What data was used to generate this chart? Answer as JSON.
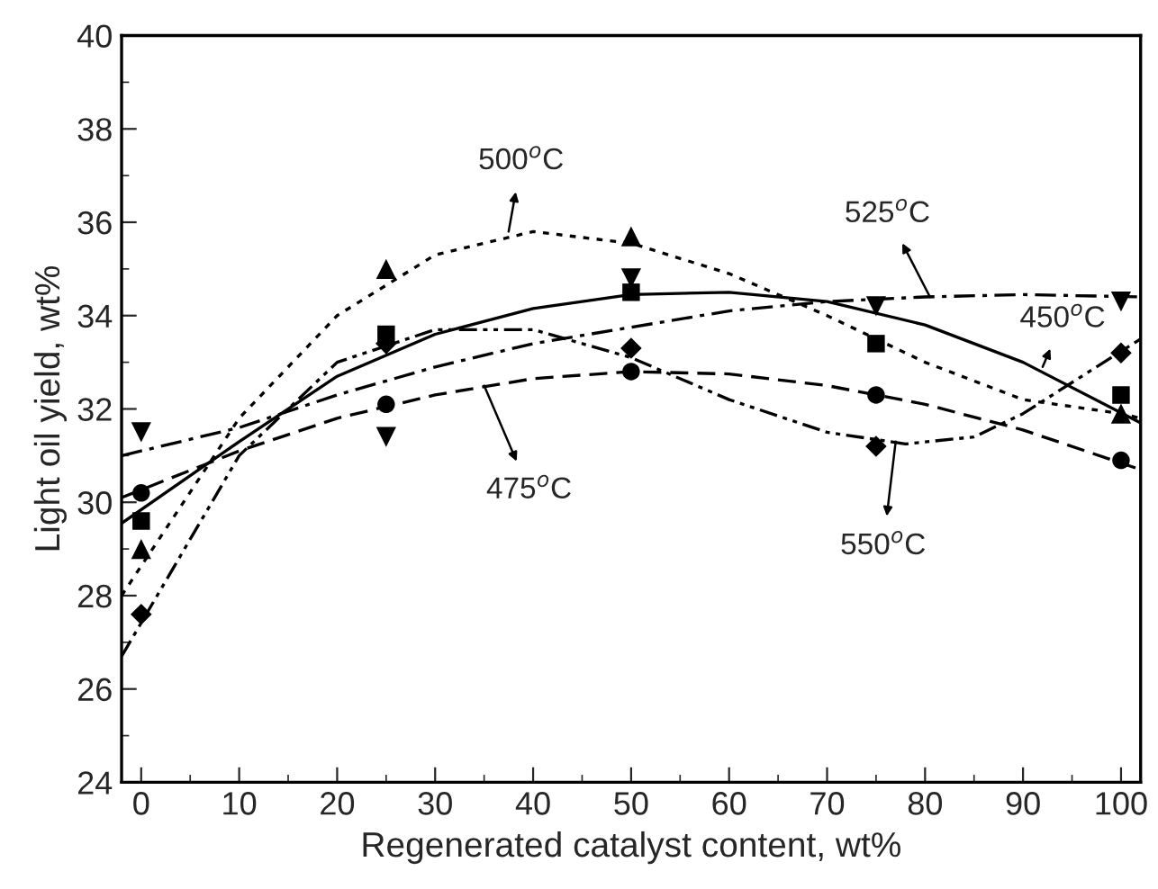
{
  "chart_data": {
    "type": "scatter",
    "xlabel": "Regenerated catalyst content, wt%",
    "ylabel": "Light oil yield, wt%",
    "xlim": [
      -2,
      102
    ],
    "xticks": [
      0,
      10,
      20,
      30,
      40,
      50,
      60,
      70,
      80,
      90,
      100
    ],
    "ylim": [
      24,
      40
    ],
    "yticks": [
      24,
      26,
      28,
      30,
      32,
      34,
      36,
      38,
      40
    ],
    "grid": false,
    "legend": false,
    "series": [
      {
        "marker": "square",
        "color": "#000000",
        "x": [
          0,
          25,
          50,
          75,
          100
        ],
        "values": [
          29.6,
          33.6,
          34.5,
          33.4,
          32.3
        ]
      },
      {
        "marker": "circle",
        "color": "#000000",
        "x": [
          0,
          25,
          50,
          75,
          100
        ],
        "values": [
          30.2,
          32.1,
          32.8,
          32.3,
          30.9
        ]
      },
      {
        "marker": "triangle",
        "color": "#000000",
        "x": [
          0,
          25,
          50,
          75,
          100
        ],
        "values": [
          29.0,
          35.0,
          35.7,
          null,
          31.9
        ]
      },
      {
        "marker": "triangle_down",
        "color": "#000000",
        "x": [
          0,
          25,
          50,
          75,
          100
        ],
        "values": [
          31.5,
          31.4,
          34.8,
          34.2,
          34.3
        ]
      },
      {
        "marker": "diamond",
        "color": "#000000",
        "x": [
          0,
          25,
          50,
          75,
          100
        ],
        "values": [
          27.6,
          33.4,
          33.3,
          31.2,
          33.2
        ]
      },
      {
        "type": "line",
        "line_style": "solid",
        "color": "#000000",
        "x": [
          -2,
          10,
          20,
          30,
          40,
          50,
          60,
          70,
          80,
          90,
          102
        ],
        "values": [
          29.55,
          31.3,
          32.7,
          33.6,
          34.15,
          34.45,
          34.5,
          34.3,
          33.8,
          33.0,
          31.7
        ]
      },
      {
        "type": "line",
        "line_style": "dashed",
        "color": "#000000",
        "x": [
          -2,
          10,
          20,
          30,
          40,
          50,
          60,
          70,
          80,
          90,
          102
        ],
        "values": [
          30.1,
          31.1,
          31.8,
          32.3,
          32.65,
          32.8,
          32.75,
          32.5,
          32.1,
          31.55,
          30.7
        ]
      },
      {
        "type": "line",
        "line_style": "dotted",
        "color": "#000000",
        "x": [
          -2,
          10,
          20,
          30,
          40,
          50,
          60,
          70,
          80,
          90,
          100,
          102
        ],
        "values": [
          28.0,
          31.8,
          34.0,
          35.3,
          35.8,
          35.55,
          34.9,
          34.0,
          33.0,
          32.2,
          31.9,
          31.8
        ]
      },
      {
        "type": "line",
        "line_style": "dashdot",
        "color": "#000000",
        "x": [
          -2,
          10,
          20,
          30,
          40,
          50,
          60,
          70,
          80,
          90,
          102
        ],
        "values": [
          31.0,
          31.6,
          32.3,
          32.9,
          33.4,
          33.75,
          34.1,
          34.3,
          34.4,
          34.45,
          34.4
        ]
      },
      {
        "type": "line",
        "line_style": "dashdotdot",
        "color": "#000000",
        "x": [
          -2,
          10,
          20,
          30,
          40,
          50,
          60,
          70,
          78,
          85,
          90,
          102
        ],
        "values": [
          26.7,
          31.0,
          33.0,
          33.7,
          33.7,
          33.1,
          32.2,
          31.5,
          31.25,
          31.4,
          31.9,
          33.5
        ]
      }
    ],
    "annotations": [
      {
        "text": "500$^{o}$C",
        "x": 37.5,
        "y": 35.8
      },
      {
        "text": "525$^{o}$C",
        "x": 80.5,
        "y": 34.4
      },
      {
        "text": "450$^{o}$C",
        "x": 92,
        "y": 32.9
      },
      {
        "text": "475$^{o}$C",
        "x": 35,
        "y": 32.5
      },
      {
        "text": "550$^{o}$C",
        "x": 77,
        "y": 31.3
      }
    ]
  }
}
